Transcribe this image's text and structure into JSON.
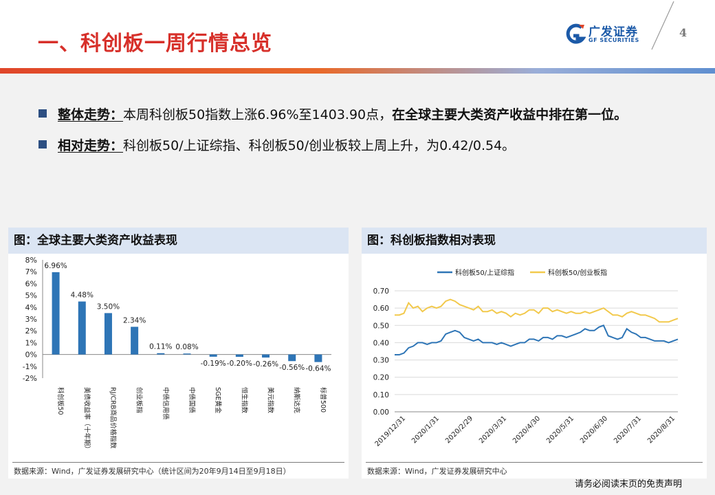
{
  "header": {
    "title": "一、科创板一周行情总览",
    "logo_cn": "广发证券",
    "logo_en": "GF SECURITIES",
    "page_number": "4"
  },
  "colors": {
    "title": "#d7302a",
    "bar": "#2e75b6",
    "line1": "#2e75b6",
    "line2": "#f2c94c",
    "panel_head": "#dbe5f3"
  },
  "bullets": [
    {
      "label": "整体走势：",
      "text": "本周科创板50指数上涨6.96%至1403.90点，",
      "bold_text": "在全球主要大类资产收益中排在第一位。"
    },
    {
      "label": "相对走势：",
      "text": "科创板50/上证综指、科创板50/创业板较上周上升，为0.42/0.54。",
      "bold_text": ""
    }
  ],
  "left_panel": {
    "heading": "图：全球主要大类资产收益表现",
    "source": "数据来源：Wind，广发证券发展研究中心（统计区间为20年9月14日至9月18日）"
  },
  "right_panel": {
    "heading": "图：科创板指数相对表现",
    "source": "数据来源：Wind，广发证券发展研究中心"
  },
  "footer": "请务必阅读末页的免责声明",
  "chart_data": [
    {
      "type": "bar",
      "categories": [
        "科创板50",
        "美债收益率（十年期）",
        "RJ/CRB商品价格指数",
        "创业板指",
        "中债信用债",
        "中债国债",
        "SGE黄金",
        "恒生指数",
        "美元指数",
        "纳斯达克",
        "标普500"
      ],
      "values": [
        6.96,
        4.48,
        3.5,
        2.34,
        0.11,
        0.08,
        -0.19,
        -0.2,
        -0.26,
        -0.56,
        -0.64
      ],
      "value_labels": [
        "6.96%",
        "4.48%",
        "3.50%",
        "2.34%",
        "0.11%",
        "0.08%",
        "-0.19%",
        "-0.20%",
        "-0.26%",
        "-0.56%",
        "-0.64%"
      ],
      "y_ticks": [
        "8%",
        "7%",
        "6%",
        "5%",
        "4%",
        "3%",
        "2%",
        "1%",
        "0%",
        "-1%",
        "-2%"
      ],
      "ylim": [
        -2,
        8
      ],
      "grid": false
    },
    {
      "type": "line",
      "x_ticks": [
        "2019/12/31",
        "2020/1/31",
        "2020/2/29",
        "2020/3/31",
        "2020/4/30",
        "2020/5/31",
        "2020/6/30",
        "2020/7/31",
        "2020/8/31"
      ],
      "y_ticks": [
        "0.70",
        "0.60",
        "0.50",
        "0.40",
        "0.30",
        "0.20",
        "0.10",
        "0.00"
      ],
      "ylim": [
        0,
        0.7
      ],
      "legend_position": "top",
      "grid": true,
      "series": [
        {
          "name": "科创板50/上证综指",
          "values": [
            0.33,
            0.33,
            0.34,
            0.37,
            0.38,
            0.4,
            0.4,
            0.39,
            0.4,
            0.4,
            0.41,
            0.45,
            0.46,
            0.47,
            0.46,
            0.43,
            0.42,
            0.41,
            0.42,
            0.4,
            0.4,
            0.4,
            0.39,
            0.4,
            0.39,
            0.38,
            0.39,
            0.4,
            0.4,
            0.42,
            0.42,
            0.41,
            0.43,
            0.43,
            0.42,
            0.44,
            0.44,
            0.43,
            0.44,
            0.45,
            0.46,
            0.48,
            0.47,
            0.47,
            0.49,
            0.5,
            0.44,
            0.43,
            0.42,
            0.43,
            0.48,
            0.46,
            0.45,
            0.43,
            0.43,
            0.42,
            0.41,
            0.41,
            0.41,
            0.4,
            0.41,
            0.42
          ]
        },
        {
          "name": "科创板50/创业板指",
          "values": [
            0.56,
            0.56,
            0.57,
            0.63,
            0.6,
            0.61,
            0.58,
            0.6,
            0.61,
            0.6,
            0.61,
            0.64,
            0.65,
            0.64,
            0.62,
            0.61,
            0.6,
            0.59,
            0.61,
            0.58,
            0.58,
            0.59,
            0.57,
            0.58,
            0.57,
            0.55,
            0.57,
            0.56,
            0.57,
            0.59,
            0.59,
            0.57,
            0.6,
            0.6,
            0.58,
            0.59,
            0.58,
            0.57,
            0.58,
            0.57,
            0.57,
            0.58,
            0.57,
            0.58,
            0.59,
            0.6,
            0.58,
            0.56,
            0.56,
            0.55,
            0.57,
            0.58,
            0.57,
            0.56,
            0.56,
            0.55,
            0.54,
            0.52,
            0.52,
            0.52,
            0.53,
            0.54
          ]
        }
      ]
    }
  ]
}
